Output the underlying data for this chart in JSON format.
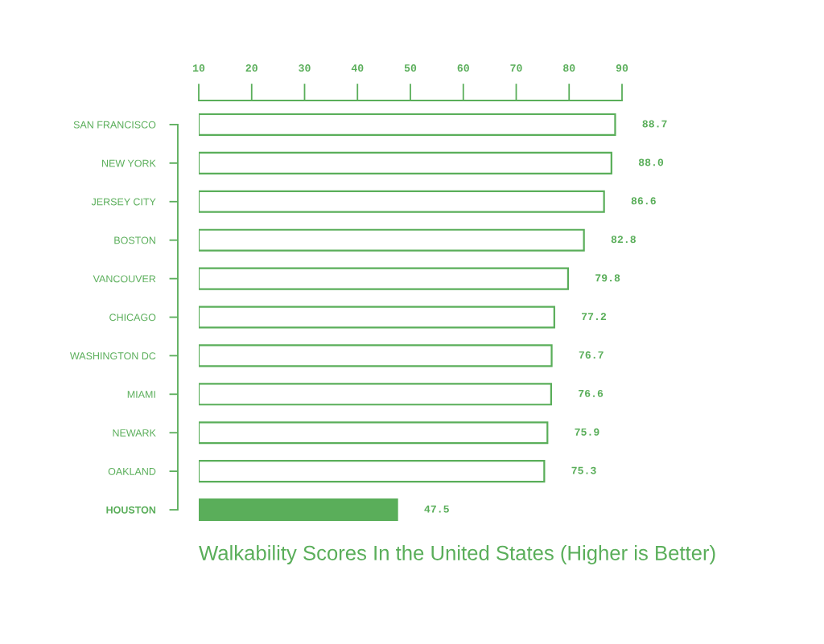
{
  "chart_data": {
    "type": "bar",
    "orientation": "horizontal",
    "title": "Walkability Scores In the United States (Higher is Better)",
    "categories": [
      "SAN FRANCISCO",
      "NEW YORK",
      "JERSEY CITY",
      "BOSTON",
      "VANCOUVER",
      "CHICAGO",
      "WASHINGTON DC",
      "MIAMI",
      "NEWARK",
      "OAKLAND",
      "HOUSTON"
    ],
    "values": [
      88.7,
      88.0,
      86.6,
      82.8,
      79.8,
      77.2,
      76.7,
      76.6,
      75.9,
      75.3,
      47.5
    ],
    "value_labels": [
      "88.7",
      "88.0",
      "86.6",
      "82.8",
      "79.8",
      "77.2",
      "76.7",
      "76.6",
      "75.9",
      "75.3",
      "47.5"
    ],
    "color": "#5aae5a",
    "colors": [
      "#ffffff",
      "#ffffff",
      "#ffffff",
      "#ffffff",
      "#ffffff",
      "#ffffff",
      "#ffffff",
      "#ffffff",
      "#ffffff",
      "#ffffff",
      "#5aae5a"
    ],
    "xlim": [
      10,
      90
    ],
    "xticks": [
      10,
      20,
      30,
      40,
      50,
      60,
      70,
      80,
      90
    ]
  }
}
